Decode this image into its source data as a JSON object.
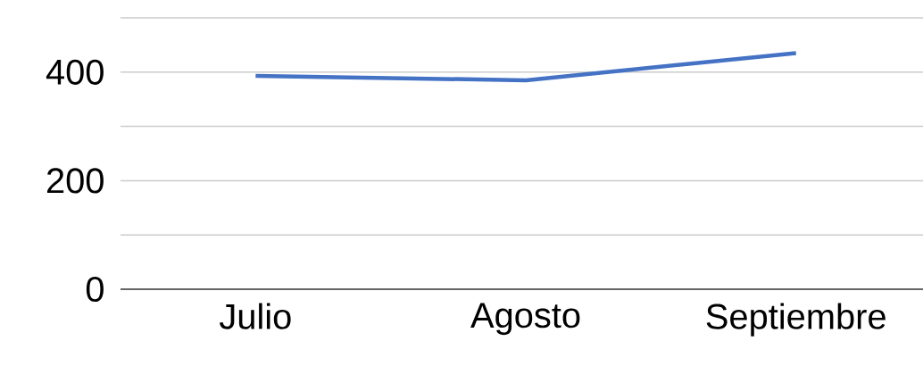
{
  "chart_data": {
    "type": "line",
    "categories": [
      "Julio",
      "Agosto",
      "Septiembre"
    ],
    "values": [
      393,
      385,
      435
    ],
    "color": "#4472c4",
    "ylim": [
      0,
      500
    ],
    "yticks": [
      0,
      {
        "value": 100,
        "label": null
      },
      200,
      {
        "value": 300,
        "label": null
      },
      400,
      {
        "value": 500,
        "label": null
      }
    ],
    "grid": "y",
    "marker": "none",
    "line_style": "solid"
  }
}
